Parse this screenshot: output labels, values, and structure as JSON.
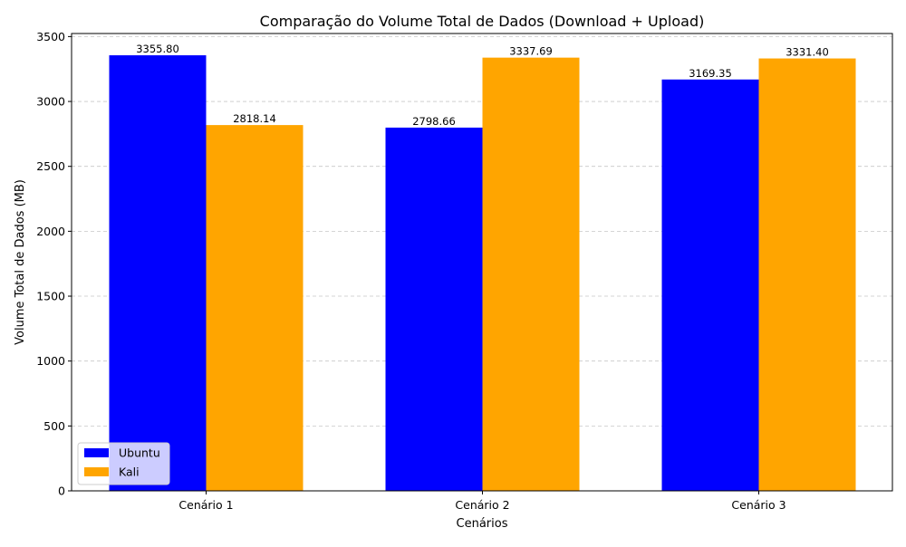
{
  "chart_data": {
    "type": "bar",
    "title": "Comparação do Volume Total de Dados (Download + Upload)",
    "xlabel": "Cenários",
    "ylabel": "Volume Total de Dados (MB)",
    "categories": [
      "Cenário 1",
      "Cenário 2",
      "Cenário 3"
    ],
    "series": [
      {
        "name": "Ubuntu",
        "color": "#0000ff",
        "values": [
          3355.8,
          2798.66,
          3169.35
        ],
        "value_labels": [
          "3355.80",
          "2798.66",
          "3169.35"
        ]
      },
      {
        "name": "Kali",
        "color": "#ffa500",
        "values": [
          2818.14,
          3337.69,
          3331.4
        ],
        "value_labels": [
          "2818.14",
          "3337.69",
          "3331.40"
        ]
      }
    ],
    "ylim": [
      0,
      3523.59
    ],
    "yticks": [
      0,
      500,
      1000,
      1500,
      2000,
      2500,
      3000,
      3500
    ],
    "ytick_labels": [
      "0",
      "500",
      "1000",
      "1500",
      "2000",
      "2500",
      "3000",
      "3500"
    ],
    "grid": "y-dashed",
    "legend_placement": "lower-left"
  }
}
